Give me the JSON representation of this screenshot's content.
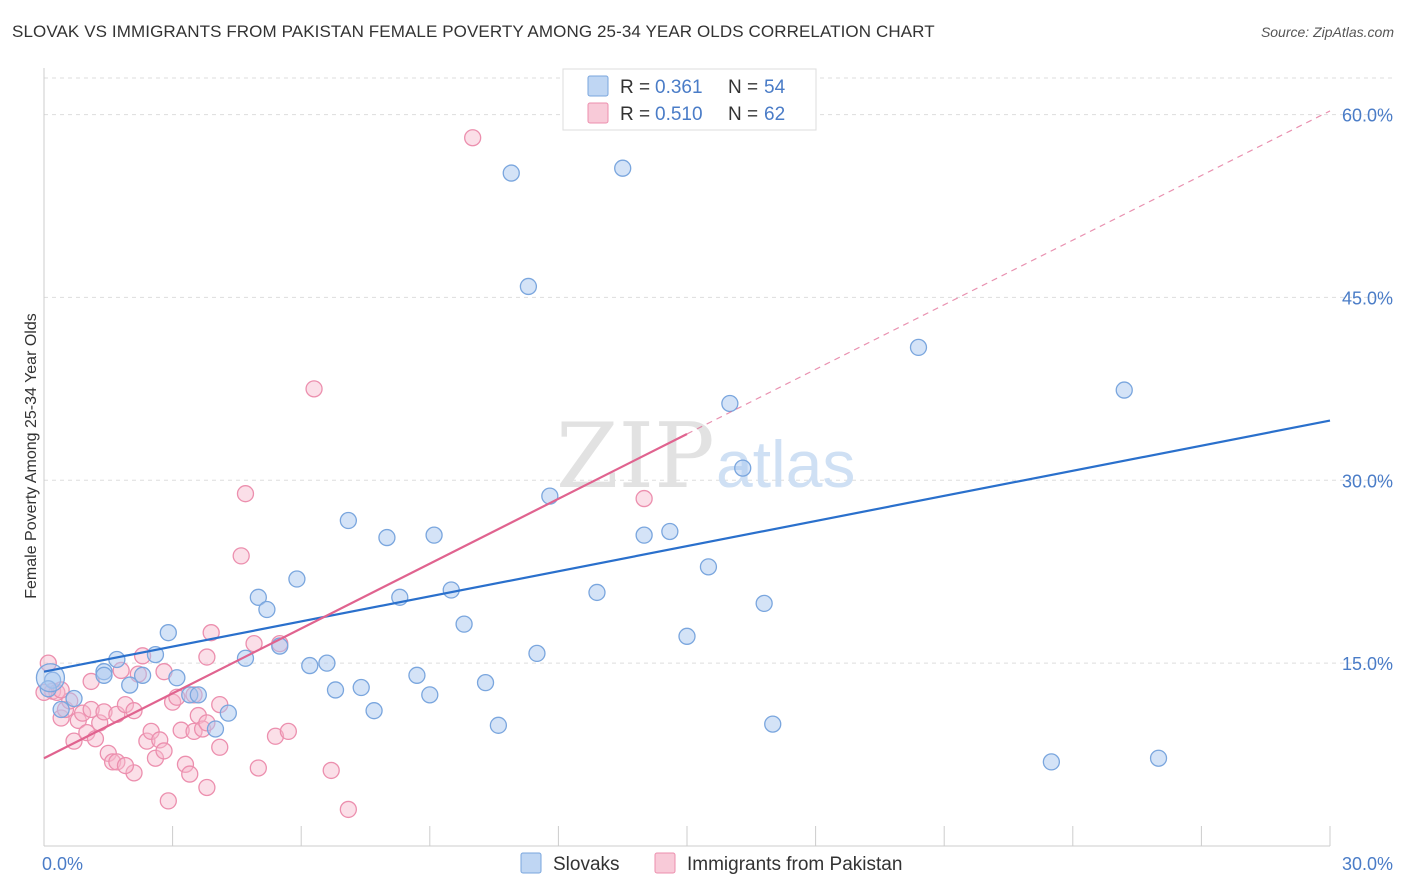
{
  "title": "SLOVAK VS IMMIGRANTS FROM PAKISTAN FEMALE POVERTY AMONG 25-34 YEAR OLDS CORRELATION CHART",
  "source": "Source: ZipAtlas.com",
  "watermark": {
    "zip": "ZIP",
    "atlas": "atlas"
  },
  "colors": {
    "slovak_fill": "#a9c8ef",
    "slovak_stroke": "#7aa6de",
    "slovak_line": "#2a70cc",
    "pakistan_fill": "#f6b8cb",
    "pakistan_stroke": "#ec8fae",
    "pakistan_line": "#e0638f",
    "tick_label": "#4a7cc7",
    "grid": "#dddddd"
  },
  "legend_top": [
    {
      "r_label": "R =",
      "r_value": "0.361",
      "n_label": "N =",
      "n_value": "54"
    },
    {
      "r_label": "R =",
      "r_value": "0.510",
      "n_label": "N =",
      "n_value": "62"
    }
  ],
  "chart_data": {
    "type": "scatter",
    "title": "SLOVAK VS IMMIGRANTS FROM PAKISTAN FEMALE POVERTY AMONG 25-34 YEAR OLDS CORRELATION CHART",
    "xlabel": "",
    "ylabel": "Female Poverty Among 25-34 Year Olds",
    "xlim": [
      0,
      30
    ],
    "ylim": [
      0,
      63
    ],
    "x_tick_labels": [
      "0.0%",
      "30.0%"
    ],
    "y_ticks": [
      15,
      30,
      45,
      60
    ],
    "y_tick_labels": [
      "15.0%",
      "30.0%",
      "45.0%",
      "60.0%"
    ],
    "grid": true,
    "legend_position": "bottom-center",
    "series": [
      {
        "name": "Slovaks",
        "stats": {
          "R": 0.361,
          "N": 54
        },
        "trend": {
          "x": [
            0,
            30
          ],
          "y": [
            14.3,
            34.9
          ]
        },
        "points": [
          [
            0.2,
            13.6
          ],
          [
            0.4,
            11.2
          ],
          [
            0.7,
            12.1
          ],
          [
            1.4,
            14.3
          ],
          [
            1.4,
            14.0
          ],
          [
            1.7,
            15.3
          ],
          [
            2.0,
            13.2
          ],
          [
            2.3,
            14.0
          ],
          [
            2.6,
            15.7
          ],
          [
            2.9,
            17.5
          ],
          [
            3.1,
            13.8
          ],
          [
            3.4,
            12.4
          ],
          [
            3.6,
            12.4
          ],
          [
            4.0,
            9.6
          ],
          [
            4.3,
            10.9
          ],
          [
            4.7,
            15.4
          ],
          [
            5.0,
            20.4
          ],
          [
            5.2,
            19.4
          ],
          [
            5.5,
            16.4
          ],
          [
            5.9,
            21.9
          ],
          [
            6.2,
            14.8
          ],
          [
            6.6,
            15.0
          ],
          [
            6.8,
            12.8
          ],
          [
            7.1,
            26.7
          ],
          [
            7.4,
            13.0
          ],
          [
            7.7,
            11.1
          ],
          [
            8.0,
            25.3
          ],
          [
            8.3,
            20.4
          ],
          [
            8.7,
            14.0
          ],
          [
            9.0,
            12.4
          ],
          [
            9.1,
            25.5
          ],
          [
            9.5,
            21.0
          ],
          [
            9.8,
            18.2
          ],
          [
            10.3,
            13.4
          ],
          [
            10.6,
            9.9
          ],
          [
            10.9,
            55.2
          ],
          [
            11.3,
            45.9
          ],
          [
            11.5,
            15.8
          ],
          [
            11.8,
            28.7
          ],
          [
            12.9,
            20.8
          ],
          [
            13.5,
            55.6
          ],
          [
            14.0,
            25.5
          ],
          [
            14.6,
            25.8
          ],
          [
            15.0,
            17.2
          ],
          [
            15.5,
            22.9
          ],
          [
            16.0,
            36.3
          ],
          [
            16.3,
            31.0
          ],
          [
            16.8,
            19.9
          ],
          [
            17.0,
            10.0
          ],
          [
            20.4,
            40.9
          ],
          [
            23.5,
            6.9
          ],
          [
            25.2,
            37.4
          ],
          [
            26.0,
            7.2
          ],
          [
            0.1,
            12.9
          ]
        ]
      },
      {
        "name": "Immigrants from Pakistan",
        "stats": {
          "R": 0.51,
          "N": 62
        },
        "trend": {
          "x": [
            0,
            15
          ],
          "y": [
            7.2,
            33.8
          ]
        },
        "trend_extended": {
          "x": [
            15,
            30
          ],
          "y": [
            33.8,
            60.3
          ]
        },
        "points": [
          [
            0.1,
            15.0
          ],
          [
            0.2,
            12.7
          ],
          [
            0.3,
            12.6
          ],
          [
            0.4,
            10.5
          ],
          [
            0.5,
            11.2
          ],
          [
            0.6,
            11.9
          ],
          [
            0.7,
            8.6
          ],
          [
            0.8,
            10.3
          ],
          [
            0.9,
            10.9
          ],
          [
            1.0,
            9.3
          ],
          [
            1.1,
            11.2
          ],
          [
            1.1,
            13.5
          ],
          [
            1.2,
            8.8
          ],
          [
            1.3,
            10.1
          ],
          [
            1.4,
            11.0
          ],
          [
            1.5,
            7.6
          ],
          [
            1.6,
            6.9
          ],
          [
            1.7,
            6.9
          ],
          [
            1.7,
            10.8
          ],
          [
            1.8,
            14.4
          ],
          [
            1.9,
            11.6
          ],
          [
            2.1,
            6.0
          ],
          [
            2.1,
            11.1
          ],
          [
            2.3,
            15.6
          ],
          [
            2.4,
            8.6
          ],
          [
            2.5,
            9.4
          ],
          [
            2.6,
            7.2
          ],
          [
            2.7,
            8.7
          ],
          [
            2.8,
            7.8
          ],
          [
            2.8,
            14.3
          ],
          [
            2.9,
            3.7
          ],
          [
            3.0,
            11.8
          ],
          [
            3.1,
            12.2
          ],
          [
            3.2,
            9.5
          ],
          [
            3.3,
            6.7
          ],
          [
            3.4,
            5.9
          ],
          [
            3.5,
            9.4
          ],
          [
            3.5,
            12.4
          ],
          [
            3.6,
            10.7
          ],
          [
            3.7,
            9.6
          ],
          [
            3.8,
            10.1
          ],
          [
            3.8,
            15.5
          ],
          [
            3.8,
            4.8
          ],
          [
            3.9,
            17.5
          ],
          [
            4.1,
            11.6
          ],
          [
            4.1,
            8.1
          ],
          [
            4.6,
            23.8
          ],
          [
            4.7,
            28.9
          ],
          [
            4.9,
            16.6
          ],
          [
            5.0,
            6.4
          ],
          [
            5.4,
            9.0
          ],
          [
            5.5,
            16.6
          ],
          [
            5.7,
            9.4
          ],
          [
            6.3,
            37.5
          ],
          [
            6.7,
            6.2
          ],
          [
            7.1,
            3.0
          ],
          [
            10.0,
            58.1
          ],
          [
            14.0,
            28.5
          ],
          [
            0.0,
            12.6
          ],
          [
            0.4,
            12.8
          ],
          [
            1.9,
            6.6
          ],
          [
            2.2,
            14.1
          ]
        ]
      }
    ]
  },
  "legend_bottom": [
    "Slovaks",
    "Immigrants from Pakistan"
  ]
}
